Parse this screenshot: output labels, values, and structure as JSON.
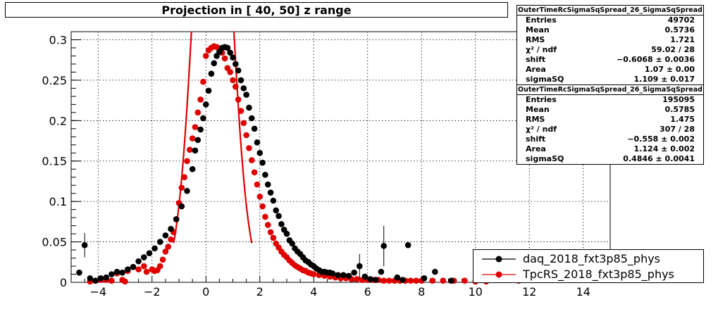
{
  "title": "Projection in [  40,  50] z range",
  "stats": [
    {
      "name": "OuterTimeRcSigmaSqSpread_26_SigmaSqSpread",
      "rows": [
        {
          "label": "Entries",
          "value": "49702"
        },
        {
          "label": "Mean",
          "value": "0.5736"
        },
        {
          "label": "RMS",
          "value": "1.721"
        },
        {
          "label": "χ² / ndf",
          "value": "59.02 / 28"
        },
        {
          "label": "shift",
          "value": "−0.6068 ± 0.0036"
        },
        {
          "label": "Area",
          "value": "1.07 ± 0.00"
        },
        {
          "label": "sigmaSQ",
          "value": "1.109 ± 0.017"
        }
      ]
    },
    {
      "name": "OuterTimeRcSigmaSqSpread_26_SigmaSqSpread",
      "rows": [
        {
          "label": "Entries",
          "value": "195095"
        },
        {
          "label": "Mean",
          "value": "0.5785"
        },
        {
          "label": "RMS",
          "value": "1.475"
        },
        {
          "label": "χ² / ndf",
          "value": "307 / 28"
        },
        {
          "label": "shift",
          "value": "−0.558 ± 0.002"
        },
        {
          "label": "Area",
          "value": "1.124 ± 0.002"
        },
        {
          "label": "sigmaSQ",
          "value": "0.4846 ± 0.0041"
        }
      ]
    }
  ],
  "legend": [
    {
      "label": "daq_2018_fxt3p85_phys",
      "color": "#000000"
    },
    {
      "label": "TpcRS_2018_fxt3p85_phys",
      "color": "#e00000"
    }
  ],
  "chart_data": {
    "type": "scatter",
    "title": "Projection in [  40,  50] z range",
    "xlabel": "",
    "ylabel": "",
    "xlim": [
      -5,
      15
    ],
    "ylim": [
      0,
      0.31
    ],
    "grid": true,
    "x_ticks": [
      -4,
      -2,
      0,
      2,
      4,
      6,
      8,
      10,
      12,
      14
    ],
    "y_ticks": [
      0,
      0.05,
      0.1,
      0.15,
      0.2,
      0.25,
      0.3
    ],
    "y_tick_labels": [
      "0",
      "0.05",
      "0.1",
      "0.15",
      "0.2",
      "0.25",
      "0.3"
    ],
    "legend_position": "bottom-right",
    "series": [
      {
        "name": "daq_2018_fxt3p85_phys",
        "color": "#000000",
        "points": [
          [
            -4.7,
            0.012
          ],
          [
            -4.5,
            0.046
          ],
          [
            -4.3,
            0.005
          ],
          [
            -4.1,
            0.002
          ],
          [
            -3.9,
            0.005
          ],
          [
            -3.7,
            0.006
          ],
          [
            -3.5,
            0.01
          ],
          [
            -3.3,
            0.013
          ],
          [
            -3.1,
            0.012
          ],
          [
            -2.9,
            0.016
          ],
          [
            -2.7,
            0.019
          ],
          [
            -2.5,
            0.026
          ],
          [
            -2.3,
            0.031
          ],
          [
            -2.1,
            0.036
          ],
          [
            -1.9,
            0.042
          ],
          [
            -1.7,
            0.05
          ],
          [
            -1.5,
            0.058
          ],
          [
            -1.3,
            0.066
          ],
          [
            -1.1,
            0.078
          ],
          [
            -0.9,
            0.094
          ],
          [
            -0.7,
            0.113
          ],
          [
            -0.5,
            0.14
          ],
          [
            -0.4,
            0.163
          ],
          [
            -0.3,
            0.176
          ],
          [
            -0.2,
            0.189
          ],
          [
            -0.1,
            0.203
          ],
          [
            0.0,
            0.22
          ],
          [
            0.1,
            0.237
          ],
          [
            0.2,
            0.258
          ],
          [
            0.3,
            0.271
          ],
          [
            0.4,
            0.28
          ],
          [
            0.5,
            0.285
          ],
          [
            0.6,
            0.29
          ],
          [
            0.7,
            0.291
          ],
          [
            0.8,
            0.29
          ],
          [
            0.9,
            0.284
          ],
          [
            1.0,
            0.278
          ],
          [
            1.1,
            0.27
          ],
          [
            1.2,
            0.262
          ],
          [
            1.3,
            0.25
          ],
          [
            1.4,
            0.24
          ],
          [
            1.5,
            0.232
          ],
          [
            1.6,
            0.216
          ],
          [
            1.7,
            0.203
          ],
          [
            1.8,
            0.19
          ],
          [
            1.9,
            0.173
          ],
          [
            2.0,
            0.16
          ],
          [
            2.1,
            0.148
          ],
          [
            2.2,
            0.133
          ],
          [
            2.3,
            0.121
          ],
          [
            2.4,
            0.111
          ],
          [
            2.5,
            0.101
          ],
          [
            2.6,
            0.089
          ],
          [
            2.7,
            0.082
          ],
          [
            2.8,
            0.072
          ],
          [
            2.9,
            0.065
          ],
          [
            3.0,
            0.06
          ],
          [
            3.1,
            0.052
          ],
          [
            3.2,
            0.048
          ],
          [
            3.3,
            0.042
          ],
          [
            3.4,
            0.038
          ],
          [
            3.5,
            0.035
          ],
          [
            3.6,
            0.031
          ],
          [
            3.7,
            0.027
          ],
          [
            3.8,
            0.025
          ],
          [
            3.9,
            0.022
          ],
          [
            4.0,
            0.02
          ],
          [
            4.1,
            0.017
          ],
          [
            4.2,
            0.015
          ],
          [
            4.3,
            0.013
          ],
          [
            4.4,
            0.013
          ],
          [
            4.5,
            0.012
          ],
          [
            4.6,
            0.012
          ],
          [
            4.7,
            0.011
          ],
          [
            4.9,
            0.009
          ],
          [
            5.1,
            0.009
          ],
          [
            5.3,
            0.008
          ],
          [
            5.5,
            0.012
          ],
          [
            5.7,
            0.02
          ],
          [
            5.9,
            0.007
          ],
          [
            6.1,
            0.004
          ],
          [
            6.3,
            0.003
          ],
          [
            6.5,
            0.013
          ],
          [
            6.6,
            0.045
          ],
          [
            7.1,
            0.006
          ],
          [
            7.3,
            0.003
          ],
          [
            7.5,
            0.046
          ],
          [
            8.1,
            0.005
          ],
          [
            8.5,
            0.013
          ],
          [
            9.1,
            0.002
          ]
        ]
      },
      {
        "name": "TpcRS_2018_fxt3p85_phys",
        "color": "#e00000",
        "points": [
          [
            -4.3,
            0.001
          ],
          [
            -4.1,
            0.002
          ],
          [
            -3.9,
            0.003
          ],
          [
            -3.7,
            0.003
          ],
          [
            -3.5,
            0.002
          ],
          [
            -3.3,
            0.011
          ],
          [
            -3.1,
            0.003
          ],
          [
            -3.0,
            0.001
          ],
          [
            -2.9,
            0.014
          ],
          [
            -2.7,
            0.019
          ],
          [
            -2.5,
            0.016
          ],
          [
            -2.3,
            0.02
          ],
          [
            -2.2,
            0.013
          ],
          [
            -2.0,
            0.016
          ],
          [
            -1.9,
            0.014
          ],
          [
            -1.8,
            0.015
          ],
          [
            -1.7,
            0.02
          ],
          [
            -1.6,
            0.028
          ],
          [
            -1.5,
            0.038
          ],
          [
            -1.4,
            0.044
          ],
          [
            -1.3,
            0.053
          ],
          [
            -1.2,
            0.062
          ],
          [
            -1.1,
            0.078
          ],
          [
            -1.0,
            0.098
          ],
          [
            -0.9,
            0.117
          ],
          [
            -0.8,
            0.13
          ],
          [
            -0.7,
            0.15
          ],
          [
            -0.6,
            0.164
          ],
          [
            -0.5,
            0.178
          ],
          [
            -0.4,
            0.192
          ],
          [
            -0.3,
            0.21
          ],
          [
            -0.2,
            0.226
          ],
          [
            -0.1,
            0.248
          ],
          [
            0.0,
            0.28
          ],
          [
            0.1,
            0.287
          ],
          [
            0.2,
            0.29
          ],
          [
            0.3,
            0.292
          ],
          [
            0.4,
            0.291
          ],
          [
            0.5,
            0.288
          ],
          [
            0.6,
            0.284
          ],
          [
            0.7,
            0.277
          ],
          [
            0.8,
            0.265
          ],
          [
            0.9,
            0.26
          ],
          [
            1.0,
            0.25
          ],
          [
            1.1,
            0.242
          ],
          [
            1.2,
            0.226
          ],
          [
            1.3,
            0.212
          ],
          [
            1.4,
            0.197
          ],
          [
            1.5,
            0.182
          ],
          [
            1.6,
            0.166
          ],
          [
            1.7,
            0.151
          ],
          [
            1.8,
            0.136
          ],
          [
            1.9,
            0.121
          ],
          [
            2.0,
            0.106
          ],
          [
            2.1,
            0.094
          ],
          [
            2.2,
            0.081
          ],
          [
            2.3,
            0.071
          ],
          [
            2.4,
            0.062
          ],
          [
            2.5,
            0.055
          ],
          [
            2.6,
            0.048
          ],
          [
            2.7,
            0.043
          ],
          [
            2.8,
            0.038
          ],
          [
            2.9,
            0.034
          ],
          [
            3.0,
            0.031
          ],
          [
            3.1,
            0.027
          ],
          [
            3.2,
            0.024
          ],
          [
            3.3,
            0.021
          ],
          [
            3.4,
            0.019
          ],
          [
            3.5,
            0.017
          ],
          [
            3.6,
            0.015
          ],
          [
            3.7,
            0.014
          ],
          [
            3.8,
            0.012
          ],
          [
            3.9,
            0.011
          ],
          [
            4.0,
            0.01
          ],
          [
            4.2,
            0.009
          ],
          [
            4.4,
            0.008
          ],
          [
            4.6,
            0.007
          ],
          [
            4.8,
            0.006
          ],
          [
            5.0,
            0.005
          ],
          [
            5.2,
            0.005
          ],
          [
            5.4,
            0.004
          ],
          [
            5.6,
            0.004
          ],
          [
            5.8,
            0.003
          ],
          [
            6.0,
            0.003
          ],
          [
            6.2,
            0.003
          ],
          [
            6.4,
            0.003
          ],
          [
            6.6,
            0.002
          ],
          [
            6.8,
            0.002
          ],
          [
            7.0,
            0.002
          ],
          [
            7.2,
            0.002
          ],
          [
            7.4,
            0.002
          ],
          [
            7.6,
            0.002
          ],
          [
            7.8,
            0.002
          ],
          [
            8.0,
            0.002
          ],
          [
            8.4,
            0.002
          ],
          [
            8.8,
            0.002
          ],
          [
            9.2,
            0.002
          ],
          [
            9.6,
            0.002
          ],
          [
            10.0,
            0.001
          ],
          [
            10.4,
            0.001
          ],
          [
            11.6,
            0.002
          ]
        ]
      }
    ],
    "fit_curve": {
      "color": "#e00000",
      "area": 1.07,
      "shift": -0.6068,
      "sigmaSQ": 1.109,
      "x_range": [
        -1.2,
        1.7
      ]
    }
  }
}
